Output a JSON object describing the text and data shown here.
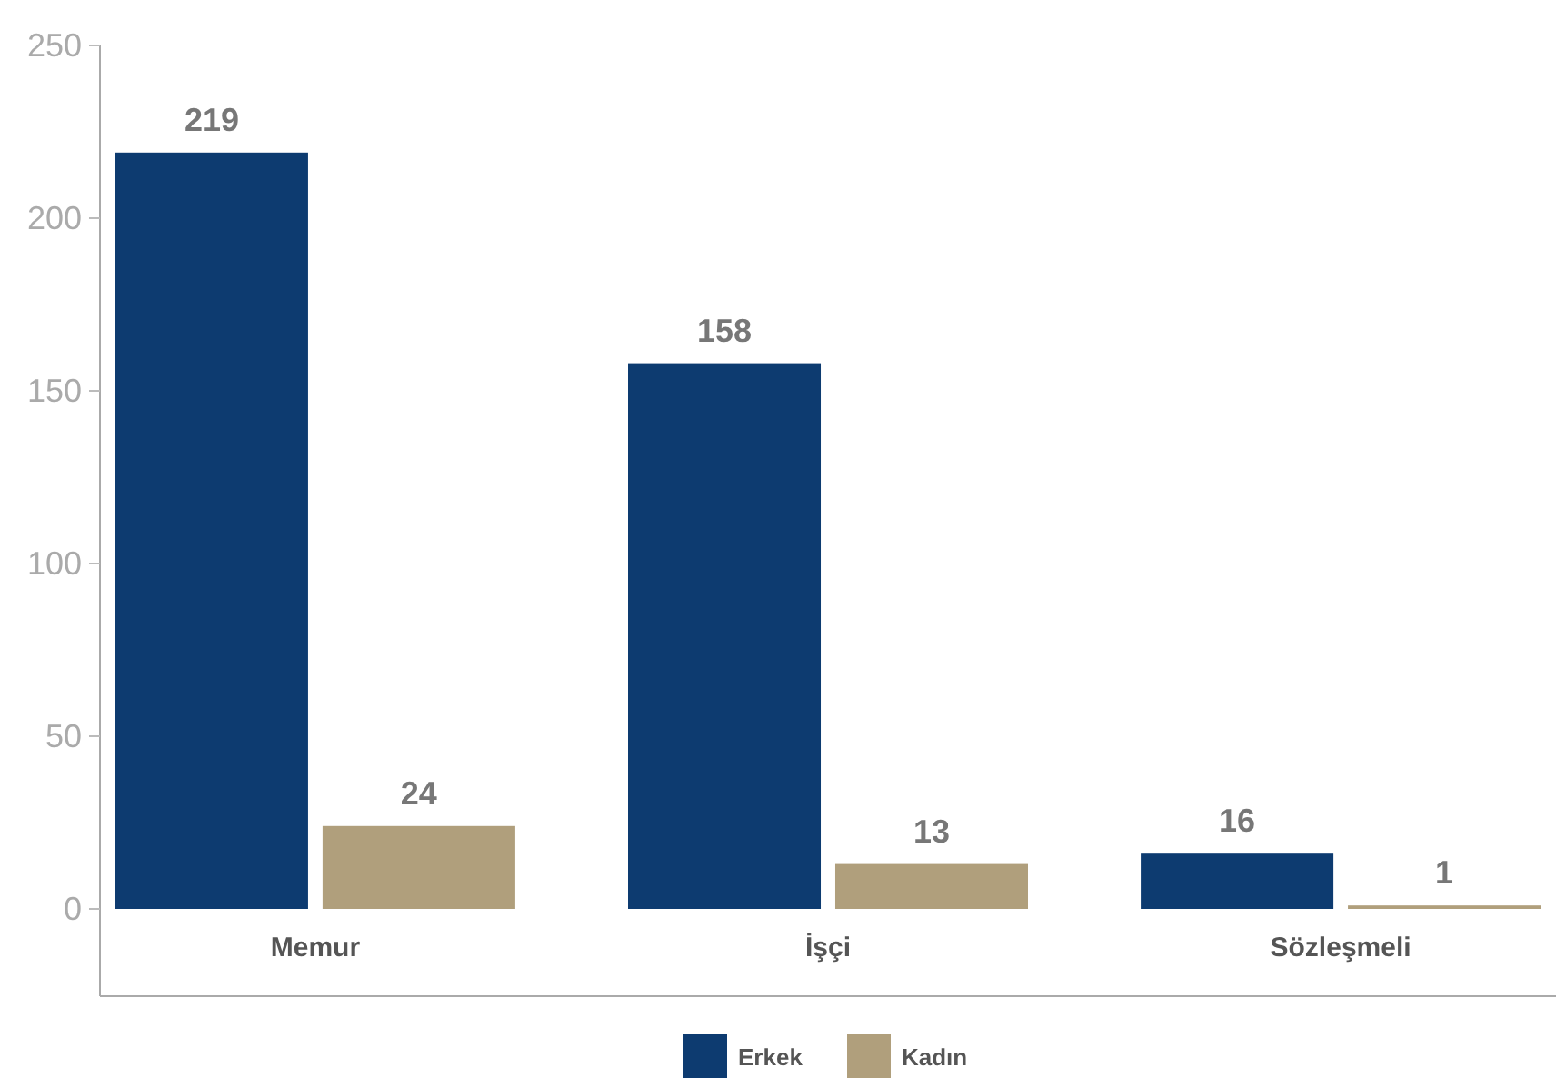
{
  "chart_data": {
    "type": "bar",
    "categories": [
      "Memur",
      "İşçi",
      "Sözleşmeli"
    ],
    "series": [
      {
        "name": "Erkek",
        "color": "#0d3b70",
        "values": [
          219,
          158,
          16
        ]
      },
      {
        "name": "Kadın",
        "color": "#b09f7c",
        "values": [
          24,
          13,
          1
        ]
      }
    ],
    "ylim": [
      0,
      250
    ],
    "yticks": [
      0,
      50,
      100,
      150,
      200,
      250
    ],
    "data_labels": true,
    "legend": "bottom",
    "grid": false
  }
}
